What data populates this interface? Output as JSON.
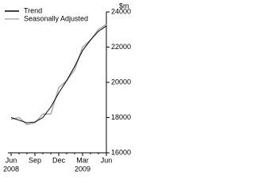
{
  "chart_data": {
    "type": "line",
    "y_unit_label": "$m",
    "categories": [
      "Jun",
      null,
      null,
      "Sep",
      null,
      null,
      "Dec",
      null,
      null,
      "Mar",
      null,
      null,
      "Jun"
    ],
    "category_years": [
      "2008",
      null,
      null,
      null,
      null,
      null,
      null,
      null,
      null,
      "2009",
      null,
      null,
      null
    ],
    "series": [
      {
        "name": "Trend",
        "color": "#000000",
        "values": [
          18000,
          17850,
          17700,
          17750,
          18000,
          18600,
          19400,
          20100,
          20900,
          21800,
          22400,
          22900,
          23200
        ]
      },
      {
        "name": "Seasonally Adjusted",
        "color": "#b0b0b0",
        "values": [
          17900,
          18000,
          17600,
          17700,
          18200,
          18200,
          19700,
          20100,
          20700,
          22000,
          22400,
          23000,
          23300
        ]
      }
    ],
    "ylim": [
      16000,
      24000
    ],
    "yticks": [
      16000,
      18000,
      20000,
      22000,
      24000
    ],
    "grid": false,
    "legend": "upper left"
  }
}
